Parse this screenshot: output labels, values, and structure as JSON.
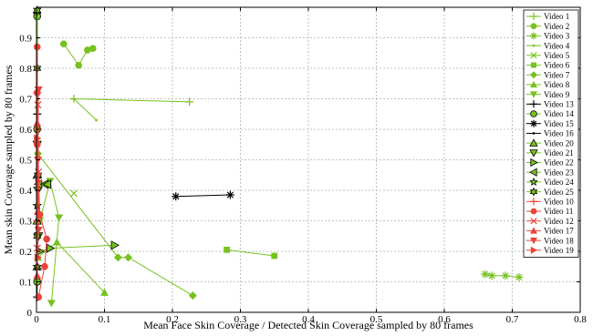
{
  "chart_data": {
    "type": "scatter",
    "title": "",
    "xlabel": "Mean Face Skin Coverage / Detected Skin Coverage sampled by 80 frames",
    "ylabel": "Mean skin Coverage sampled by 80 frames",
    "xlim": [
      0,
      0.8
    ],
    "ylim": [
      0,
      1
    ],
    "xticks": [
      "0",
      "0.1",
      "0.2",
      "0.3",
      "0.4",
      "0.5",
      "0.6",
      "0.7",
      "0.8"
    ],
    "yticks": [
      "0",
      "0.1",
      "0.2",
      "0.3",
      "0.4",
      "0.5",
      "0.6",
      "0.7",
      "0.8",
      "0.9"
    ],
    "grid": true,
    "grid_style": "dashed",
    "legend_position": "right",
    "series": [
      {
        "name": "Video 1",
        "color": "#77c21f",
        "marker": "plus",
        "points": [
          [
            0.055,
            0.7
          ],
          [
            0.225,
            0.69
          ]
        ]
      },
      {
        "name": "Video 2",
        "color": "#77c21f",
        "marker": "circle",
        "points": [
          [
            0.04,
            0.88
          ],
          [
            0.062,
            0.81
          ],
          [
            0.075,
            0.86
          ],
          [
            0.083,
            0.865
          ]
        ]
      },
      {
        "name": "Video 3",
        "color": "#77c21f",
        "marker": "star",
        "points": [
          [
            0.66,
            0.125
          ],
          [
            0.67,
            0.12
          ],
          [
            0.69,
            0.12
          ],
          [
            0.71,
            0.115
          ]
        ]
      },
      {
        "name": "Video 4",
        "color": "#77c21f",
        "marker": "point",
        "points": [
          [
            0.055,
            0.7
          ],
          [
            0.088,
            0.63
          ]
        ]
      },
      {
        "name": "Video 5",
        "color": "#77c21f",
        "marker": "x",
        "points": [
          [
            0.055,
            0.39
          ]
        ]
      },
      {
        "name": "Video 6",
        "color": "#77c21f",
        "marker": "square",
        "points": [
          [
            0.28,
            0.205
          ],
          [
            0.35,
            0.185
          ]
        ]
      },
      {
        "name": "Video 7",
        "color": "#77c21f",
        "marker": "diamond",
        "points": [
          [
            0.002,
            0.52
          ],
          [
            0.12,
            0.18
          ],
          [
            0.135,
            0.18
          ],
          [
            0.23,
            0.055
          ]
        ]
      },
      {
        "name": "Video 8",
        "color": "#77c21f",
        "marker": "triangle-up",
        "points": [
          [
            0.002,
            0.18
          ],
          [
            0.03,
            0.23
          ],
          [
            0.1,
            0.065
          ]
        ]
      },
      {
        "name": "Video 9",
        "color": "#77c21f",
        "marker": "triangle-down",
        "points": [
          [
            0.005,
            0.3
          ],
          [
            0.02,
            0.43
          ],
          [
            0.033,
            0.31
          ],
          [
            0.022,
            0.03
          ]
        ]
      },
      {
        "name": "Video 13",
        "color": "#000000",
        "marker": "plus",
        "points": [
          [
            0.001,
            0.98
          ],
          [
            0.001,
            0.65
          ],
          [
            0.001,
            0.05
          ]
        ]
      },
      {
        "name": "Video 14",
        "color": "#77c21f",
        "marker": "circle",
        "edge": "#000000",
        "points": [
          [
            0.001,
            0.97
          ],
          [
            0.001,
            0.6
          ],
          [
            0.001,
            0.1
          ]
        ]
      },
      {
        "name": "Video 15",
        "color": "#000000",
        "marker": "star",
        "points": [
          [
            0.205,
            0.38
          ],
          [
            0.285,
            0.385
          ]
        ]
      },
      {
        "name": "Video 16",
        "color": "#000000",
        "marker": "point",
        "points": [
          [
            0.001,
            0.9
          ],
          [
            0.001,
            0.5
          ],
          [
            0.001,
            0.2
          ]
        ]
      },
      {
        "name": "Video 20",
        "color": "#77c21f",
        "marker": "triangle-up",
        "edge": "#000000",
        "points": [
          [
            0.001,
            0.45
          ],
          [
            0.001,
            0.3
          ],
          [
            0.001,
            0.15
          ]
        ]
      },
      {
        "name": "Video 21",
        "color": "#77c21f",
        "marker": "triangle-down",
        "edge": "#000000",
        "points": [
          [
            0.001,
            0.55
          ],
          [
            0.002,
            0.4
          ],
          [
            0.003,
            0.25
          ]
        ]
      },
      {
        "name": "Video 22",
        "color": "#77c21f",
        "marker": "triangle-right",
        "edge": "#000000",
        "points": [
          [
            0.005,
            0.2
          ],
          [
            0.02,
            0.21
          ],
          [
            0.115,
            0.22
          ]
        ]
      },
      {
        "name": "Video 23",
        "color": "#77c21f",
        "marker": "triangle-left",
        "edge": "#000000",
        "points": [
          [
            0.003,
            0.42
          ],
          [
            0.012,
            0.42
          ],
          [
            0.016,
            0.42
          ]
        ]
      },
      {
        "name": "Video 24",
        "color": "#77c21f",
        "marker": "star",
        "edge": "#000000",
        "points": [
          [
            0.001,
            0.35
          ],
          [
            0.001,
            0.15
          ]
        ]
      },
      {
        "name": "Video 25",
        "color": "#77c21f",
        "marker": "hexagram",
        "edge": "#000000",
        "points": [
          [
            0.001,
            0.99
          ],
          [
            0.001,
            0.8
          ],
          [
            0.002,
            0.45
          ],
          [
            0.001,
            0.25
          ]
        ]
      },
      {
        "name": "Video 10",
        "color": "#e8443a",
        "marker": "plus",
        "points": [
          [
            0.001,
            0.72
          ],
          [
            0.002,
            0.6
          ],
          [
            0.001,
            0.3
          ]
        ]
      },
      {
        "name": "Video 11",
        "color": "#e8443a",
        "marker": "circle",
        "points": [
          [
            0.001,
            0.87
          ],
          [
            0.001,
            0.72
          ],
          [
            0.001,
            0.55
          ],
          [
            0.005,
            0.32
          ],
          [
            0.015,
            0.24
          ],
          [
            0.012,
            0.15
          ],
          [
            0.003,
            0.05
          ]
        ]
      },
      {
        "name": "Video 12",
        "color": "#e8443a",
        "marker": "x",
        "points": [
          [
            0.002,
            0.68
          ],
          [
            0.003,
            0.46
          ],
          [
            0.001,
            0.21
          ]
        ]
      },
      {
        "name": "Video 17",
        "color": "#e8443a",
        "marker": "triangle-up",
        "points": [
          [
            0.001,
            0.62
          ],
          [
            0.002,
            0.33
          ],
          [
            0.001,
            0.12
          ]
        ]
      },
      {
        "name": "Video 18",
        "color": "#e8443a",
        "marker": "triangle-down",
        "points": [
          [
            0.003,
            0.73
          ],
          [
            0.002,
            0.5
          ],
          [
            0.003,
            0.27
          ]
        ]
      },
      {
        "name": "Video 19",
        "color": "#e8443a",
        "marker": "triangle-right",
        "points": [
          [
            0.001,
            0.57
          ],
          [
            0.003,
            0.43
          ],
          [
            0.002,
            0.18
          ]
        ]
      }
    ]
  }
}
